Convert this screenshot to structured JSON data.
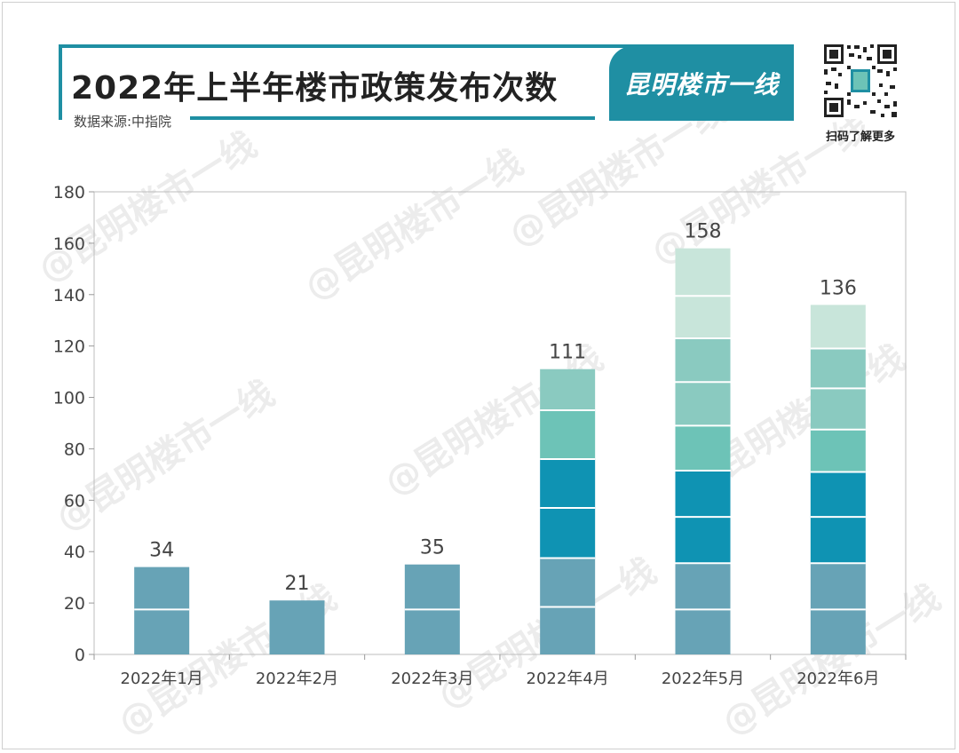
{
  "header": {
    "title": "2022年上半年楼市政策发布次数",
    "source": "数据来源:中指院",
    "brand": "昆明楼市一线",
    "qr_caption": "扫码了解更多"
  },
  "watermark_text": "@昆明楼市一线",
  "colors": {
    "accent": "#1f8fa3",
    "segments": [
      "#67a3b6",
      "#67a3b6",
      "#0f93b3",
      "#0f93b3",
      "#6dc3b7",
      "#8acac0",
      "#8acac0",
      "#c8e5da"
    ]
  },
  "chart_data": {
    "type": "bar",
    "stacked_segments": true,
    "title": "2022年上半年楼市政策发布次数",
    "categories": [
      "2022年1月",
      "2022年2月",
      "2022年3月",
      "2022年4月",
      "2022年5月",
      "2022年6月"
    ],
    "values": [
      34,
      21,
      35,
      111,
      158,
      136
    ],
    "segment_breaks": [
      [
        17.5,
        34
      ],
      [
        21
      ],
      [
        17.5,
        35
      ],
      [
        18.5,
        37.5,
        57,
        76,
        95,
        111
      ],
      [
        17.5,
        35.5,
        53.5,
        71.5,
        89,
        106,
        123,
        139.5,
        158
      ],
      [
        17.5,
        35.5,
        53.5,
        71,
        87.5,
        103.5,
        119,
        136
      ]
    ],
    "ylim": [
      0,
      180
    ],
    "yticks": [
      0,
      20,
      40,
      60,
      80,
      100,
      120,
      140,
      160,
      180
    ],
    "xlabel": "",
    "ylabel": "",
    "grid": false
  }
}
